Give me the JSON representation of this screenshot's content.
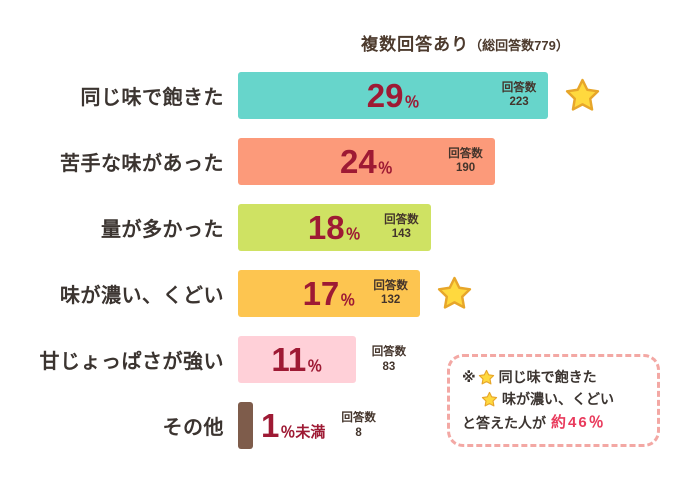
{
  "header": {
    "title_main": "複数回答あり",
    "title_sub": "（総回答数779）"
  },
  "chart_data": {
    "type": "bar",
    "orientation": "horizontal",
    "title": "複数回答あり（総回答数779）",
    "total_responses": 779,
    "categories": [
      "同じ味で飽きた",
      "苦手な味があった",
      "量が多かった",
      "味が濃い、くどい",
      "甘じょっぱさが強い",
      "その他"
    ],
    "series": [
      {
        "name": "割合（％）",
        "values": [
          29,
          24,
          18,
          17,
          11,
          1
        ]
      },
      {
        "name": "回答数",
        "values": [
          223,
          190,
          143,
          132,
          83,
          8
        ]
      }
    ],
    "value_labels": [
      "29％",
      "24％",
      "18％",
      "17％",
      "11％",
      "1％未満"
    ],
    "xlim": [
      0,
      30
    ],
    "grid": false,
    "legend": false,
    "starred_categories": [
      "同じ味で飽きた",
      "味が濃い、くどい"
    ],
    "annotation": "※ 同じ味で飽きた・味が濃い、くどい と答えた人が 約46％"
  },
  "bars": [
    {
      "label": "同じ味で飽きた",
      "percent": "29",
      "percent_value": 29,
      "percent_suffix": "％",
      "count_title": "回答数",
      "count": "223",
      "color": "#67d5cb",
      "starred": true
    },
    {
      "label": "苦手な味があった",
      "percent": "24",
      "percent_value": 24,
      "percent_suffix": "％",
      "count_title": "回答数",
      "count": "190",
      "color": "#fc9a7a",
      "starred": false
    },
    {
      "label": "量が多かった",
      "percent": "18",
      "percent_value": 18,
      "percent_suffix": "％",
      "count_title": "回答数",
      "count": "143",
      "color": "#cfe263",
      "starred": false
    },
    {
      "label": "味が濃い、くどい",
      "percent": "17",
      "percent_value": 17,
      "percent_suffix": "％",
      "count_title": "回答数",
      "count": "132",
      "color": "#fdc550",
      "starred": true
    },
    {
      "label": "甘じょっぱさが強い",
      "percent": "11",
      "percent_value": 11,
      "percent_suffix": "％",
      "count_title": "回答数",
      "count": "83",
      "color": "#ffd0d8",
      "starred": false
    },
    {
      "label": "その他",
      "percent": "1",
      "percent_value": 1,
      "percent_suffix": "％未満",
      "count_title": "回答数",
      "count": "8",
      "color": "#7e5c4b",
      "starred": false
    }
  ],
  "note": {
    "marker": "※",
    "item1": "同じ味で飽きた",
    "item2": "味が濃い、くどい",
    "suffix": "と答えた人が",
    "value": "約46％"
  },
  "colors": {
    "percent_text": "#9e1a34",
    "label_text": "#3b3430",
    "title_text": "#4c3a2d",
    "count_text": "#43342b",
    "note_border": "#f3a8a4",
    "highlight": "#e93a5c",
    "star_fill": "#ffd93e",
    "star_stroke": "#e7a62a"
  }
}
